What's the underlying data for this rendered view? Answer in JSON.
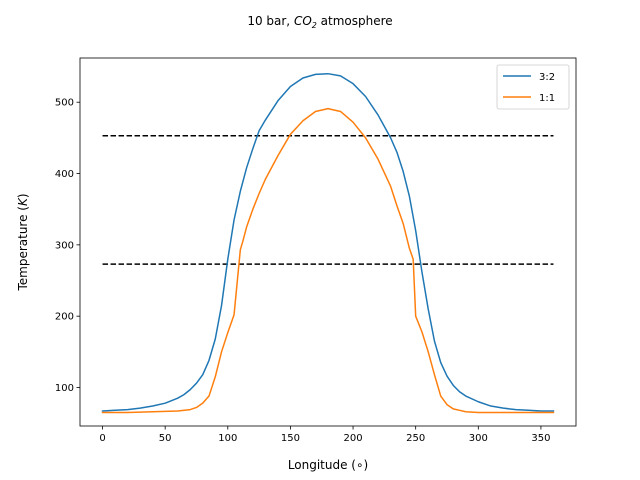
{
  "chart_data": {
    "type": "line",
    "title": "10 bar, CO2 atmosphere",
    "title_parts": {
      "prefix": "10 bar, ",
      "chem": "CO",
      "subscript": "2",
      "suffix": " atmosphere"
    },
    "xlabel": "Longitude (∘)",
    "ylabel": "Temperature (K)",
    "ylabel_parts": {
      "prefix": "Temperature (",
      "unit": "K",
      "suffix": ")"
    },
    "xlim": [
      -18,
      378
    ],
    "ylim": [
      46,
      562
    ],
    "xticks": [
      0,
      50,
      100,
      150,
      200,
      250,
      300,
      350
    ],
    "yticks": [
      100,
      200,
      300,
      400,
      500
    ],
    "grid": false,
    "legend_position": "top-right",
    "series": [
      {
        "name": "3:2",
        "color": "#1f77b4",
        "x": [
          0,
          10,
          20,
          30,
          40,
          50,
          60,
          65,
          70,
          75,
          80,
          85,
          90,
          95,
          100,
          105,
          110,
          115,
          120,
          125,
          130,
          140,
          150,
          160,
          170,
          180,
          190,
          200,
          210,
          220,
          230,
          235,
          240,
          245,
          250,
          255,
          260,
          265,
          270,
          275,
          280,
          285,
          290,
          300,
          310,
          320,
          330,
          340,
          350,
          360
        ],
        "y": [
          67,
          68,
          69,
          71,
          74,
          78,
          85,
          90,
          97,
          106,
          118,
          138,
          168,
          215,
          280,
          335,
          375,
          408,
          435,
          460,
          475,
          502,
          522,
          534,
          539,
          540,
          537,
          526,
          508,
          482,
          450,
          430,
          403,
          368,
          320,
          262,
          210,
          165,
          135,
          116,
          103,
          94,
          88,
          80,
          74,
          71,
          69,
          68,
          67,
          67
        ]
      },
      {
        "name": "1:1",
        "color": "#ff7f0e",
        "x": [
          0,
          20,
          40,
          60,
          70,
          75,
          80,
          85,
          90,
          95,
          100,
          105,
          110,
          112,
          115,
          120,
          125,
          130,
          140,
          150,
          160,
          170,
          180,
          190,
          200,
          210,
          220,
          230,
          235,
          240,
          245,
          248,
          250,
          255,
          260,
          265,
          270,
          275,
          280,
          285,
          290,
          300,
          320,
          340,
          360
        ],
        "y": [
          65,
          65,
          66,
          67,
          69,
          72,
          78,
          88,
          115,
          150,
          177,
          202,
          293,
          305,
          325,
          350,
          372,
          392,
          425,
          455,
          474,
          487,
          491,
          487,
          472,
          450,
          420,
          382,
          355,
          330,
          295,
          280,
          200,
          178,
          150,
          118,
          88,
          76,
          70,
          68,
          66,
          65,
          65,
          65,
          65
        ]
      }
    ],
    "reference_lines": [
      {
        "type": "horizontal",
        "y": 273,
        "x_range": [
          0,
          360
        ],
        "style": "dashed",
        "color": "#000000"
      },
      {
        "type": "horizontal",
        "y": 453,
        "x_range": [
          0,
          360
        ],
        "style": "dashed",
        "color": "#000000"
      }
    ]
  }
}
